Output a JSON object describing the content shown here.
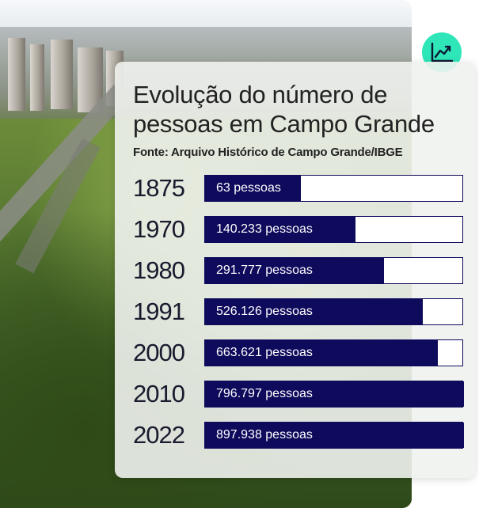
{
  "title": "Evolução do número de pessoas em Campo Grande",
  "source": "Fonte: Arquivo Histórico de Campo Grande/IBGE",
  "icon": "line-chart-icon",
  "colors": {
    "bar": "#0e0a5c",
    "track": "#ffffff",
    "icon_bg": "#2ee6b8"
  },
  "chart_data": {
    "type": "bar",
    "orientation": "horizontal",
    "categories": [
      "1875",
      "1970",
      "1980",
      "1991",
      "2000",
      "2010",
      "2022"
    ],
    "values": [
      63,
      140233,
      291777,
      526126,
      663621,
      796797,
      897938
    ],
    "fill_fraction": [
      0.37,
      0.58,
      0.69,
      0.84,
      0.9,
      1.0,
      1.0
    ],
    "labels": [
      "63 pessoas",
      "140.233 pessoas",
      "291.777 pessoas",
      "526.126 pessoas",
      "663.621 pessoas",
      "796.797 pessoas",
      "897.938 pessoas"
    ]
  }
}
